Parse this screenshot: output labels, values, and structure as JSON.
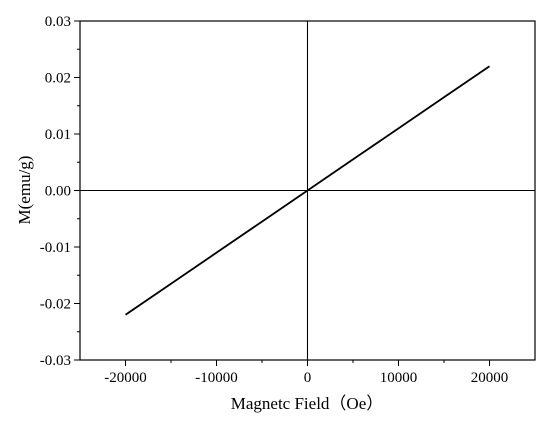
{
  "chart_data": {
    "type": "line",
    "xlabel": "Magnetc Field（Oe）",
    "ylabel": "M(emu/g)",
    "xlim": [
      -25000,
      25000
    ],
    "ylim": [
      -0.03,
      0.03
    ],
    "x_ticks": [
      -20000,
      -10000,
      0,
      10000,
      20000
    ],
    "x_tick_labels": [
      "-20000",
      "-10000",
      "0",
      "10000",
      "20000"
    ],
    "y_ticks": [
      -0.03,
      -0.02,
      -0.01,
      0.0,
      0.01,
      0.02,
      0.03
    ],
    "y_tick_labels": [
      "-0.03",
      "-0.02",
      "-0.01",
      "0.00",
      "0.01",
      "0.02",
      "0.03"
    ],
    "grid": false,
    "zero_lines": true,
    "series": [
      {
        "x": [
          -20000,
          -15000,
          -10000,
          -5000,
          0,
          5000,
          10000,
          15000,
          20000
        ],
        "y": [
          -0.022,
          -0.0165,
          -0.011,
          -0.0055,
          0.0,
          0.0055,
          0.011,
          0.0165,
          0.022
        ],
        "color": "#000000"
      }
    ]
  }
}
